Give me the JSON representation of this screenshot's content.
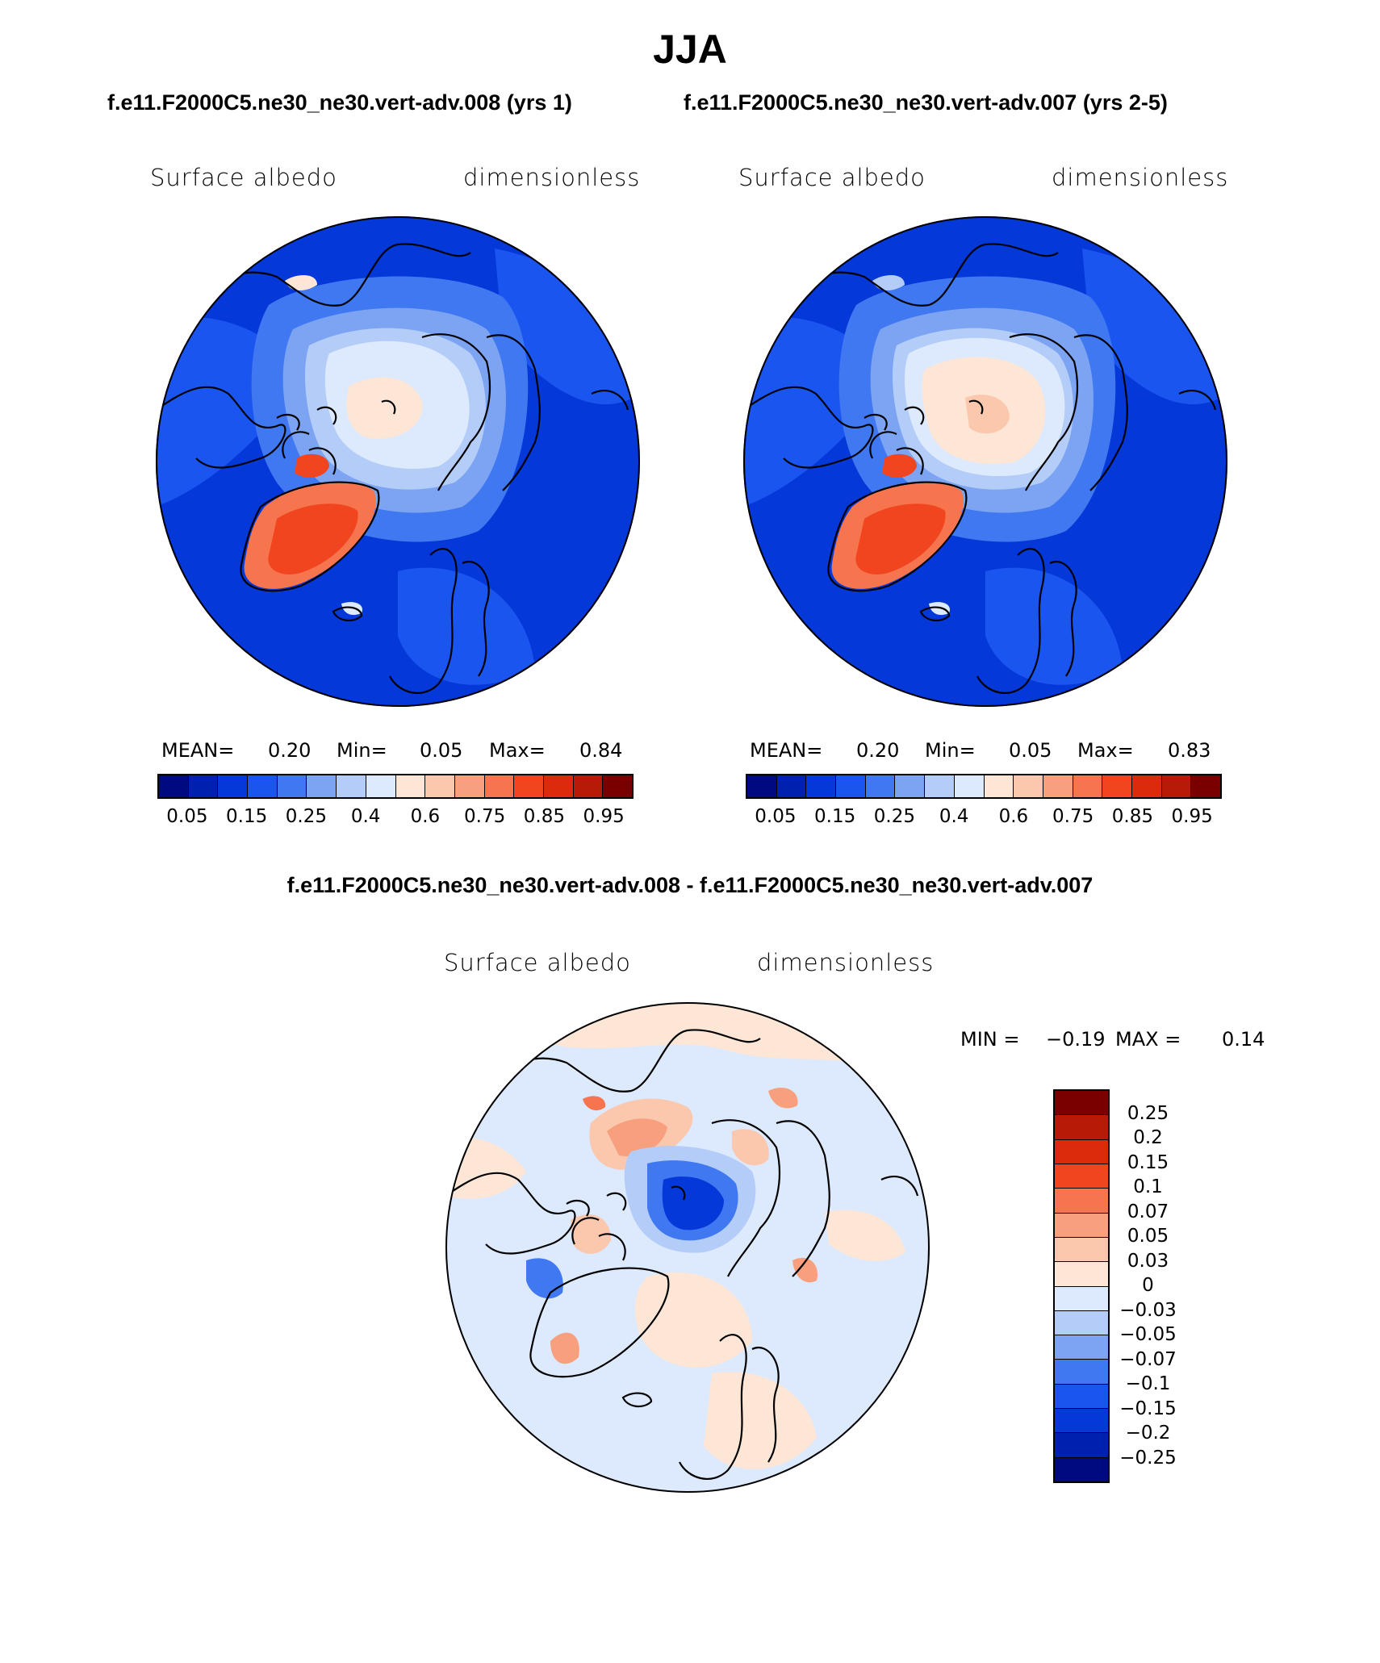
{
  "title": "JJA",
  "panel1": {
    "case": "f.e11.F2000C5.ne30_ne30.vert-adv.008 (yrs 1)",
    "left_label": "Surface albedo",
    "right_label": "dimensionless",
    "mean_label": "MEAN=",
    "mean": "0.20",
    "min_label": "Min=",
    "min": "0.05",
    "max_label": "Max=",
    "max": "0.84"
  },
  "panel2": {
    "case": "f.e11.F2000C5.ne30_ne30.vert-adv.007 (yrs 2-5)",
    "left_label": "Surface albedo",
    "right_label": "dimensionless",
    "mean_label": "MEAN=",
    "mean": "0.20",
    "min_label": "Min=",
    "min": "0.05",
    "max_label": "Max=",
    "max": "0.83"
  },
  "diff": {
    "title": "f.e11.F2000C5.ne30_ne30.vert-adv.008 - f.e11.F2000C5.ne30_ne30.vert-adv.007",
    "left_label": "Surface albedo",
    "right_label": "dimensionless",
    "min_label": "MIN =",
    "min": "−0.19",
    "max_label": "MAX =",
    "max": "0.14"
  },
  "abs_colorbar": {
    "colors": [
      "#000a80",
      "#0020b0",
      "#0538d8",
      "#1a55f0",
      "#3f78f0",
      "#7ca4f2",
      "#b3cdf8",
      "#dde9fc",
      "#fde6d6",
      "#fbc7ad",
      "#f89f7d",
      "#f6754e",
      "#f14520",
      "#dc2a0c",
      "#b71a06",
      "#7a0000"
    ],
    "tick_labels": [
      "0.05",
      "0.15",
      "0.25",
      "0.4",
      "0.6",
      "0.75",
      "0.85",
      "0.95"
    ]
  },
  "diff_colorbar": {
    "colors": [
      "#7a0000",
      "#b71a06",
      "#dc2a0c",
      "#f14520",
      "#f6754e",
      "#f89f7d",
      "#fbc7ad",
      "#fde6d6",
      "#dde9fc",
      "#b3cdf8",
      "#7ca4f2",
      "#3f78f0",
      "#1a55f0",
      "#0538d8",
      "#0020b0",
      "#000a80"
    ],
    "tick_labels": [
      "0.25",
      "0.2",
      "0.15",
      "0.1",
      "0.07",
      "0.05",
      "0.03",
      "0",
      "−0.03",
      "−0.05",
      "−0.07",
      "−0.1",
      "−0.15",
      "−0.2",
      "−0.25"
    ]
  }
}
